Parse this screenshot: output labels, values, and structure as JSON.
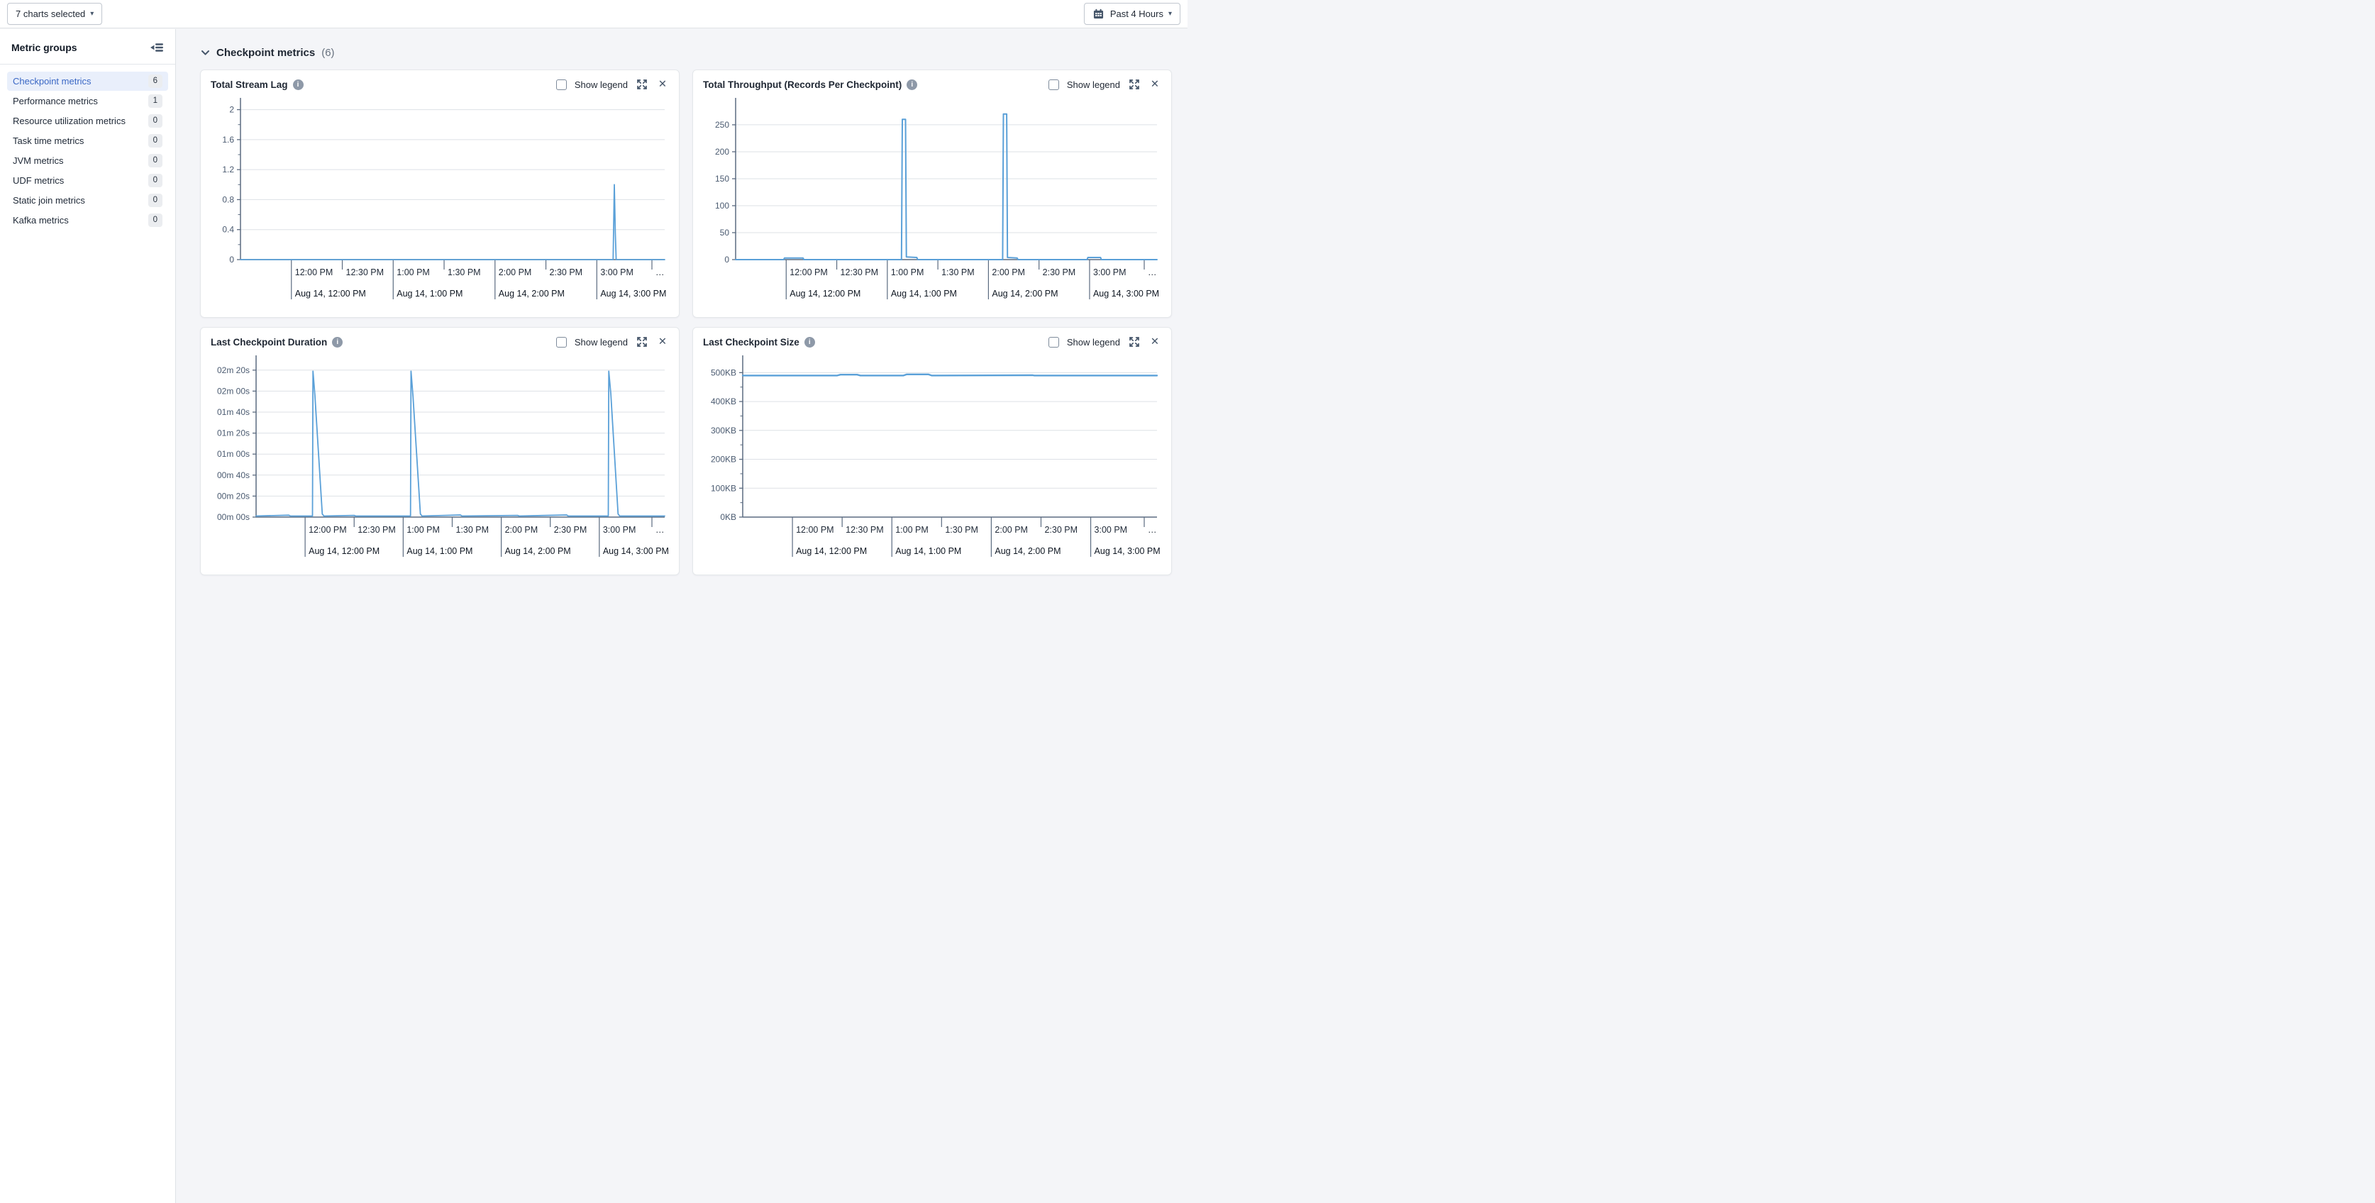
{
  "toolbar": {
    "charts_selected_label": "7 charts selected",
    "time_range_label": "Past 4 Hours"
  },
  "icons": {
    "caret_glyph": "▾",
    "close_glyph": "✕"
  },
  "labels": {
    "show_legend": "Show legend"
  },
  "sidebar": {
    "title": "Metric groups",
    "items": [
      {
        "label": "Checkpoint metrics",
        "count": "6",
        "selected": true
      },
      {
        "label": "Performance metrics",
        "count": "1",
        "selected": false
      },
      {
        "label": "Resource utilization metrics",
        "count": "0",
        "selected": false
      },
      {
        "label": "Task time metrics",
        "count": "0",
        "selected": false
      },
      {
        "label": "JVM metrics",
        "count": "0",
        "selected": false
      },
      {
        "label": "UDF metrics",
        "count": "0",
        "selected": false
      },
      {
        "label": "Static join metrics",
        "count": "0",
        "selected": false
      },
      {
        "label": "Kafka metrics",
        "count": "0",
        "selected": false
      }
    ]
  },
  "section": {
    "title": "Checkpoint metrics",
    "count": "(6)"
  },
  "colors": {
    "line_blue": "#5aa0d8",
    "accent_blue": "#3b68c5",
    "gridline": "#dde1e6",
    "axis": "#5b6b80"
  },
  "chart_data": [
    {
      "type": "line",
      "title": "Total Stream Lag",
      "legend_shown": false,
      "xlim": [
        0,
        250
      ],
      "x_start_time": "11:30 AM",
      "ylim": [
        0,
        2.1
      ],
      "yticks": [
        {
          "v": 0,
          "label": "0"
        },
        {
          "v": 0.4,
          "label": "0.4"
        },
        {
          "v": 0.8,
          "label": "0.8"
        },
        {
          "v": 1.2,
          "label": "1.2"
        },
        {
          "v": 1.6,
          "label": "1.6"
        },
        {
          "v": 2,
          "label": "2"
        }
      ],
      "minor_y_step": 0.2,
      "x_time_ticks": [
        {
          "t": 30,
          "label": "12:00 PM"
        },
        {
          "t": 60,
          "label": "12:30 PM"
        },
        {
          "t": 90,
          "label": "1:00 PM"
        },
        {
          "t": 120,
          "label": "1:30 PM"
        },
        {
          "t": 150,
          "label": "2:00 PM"
        },
        {
          "t": 180,
          "label": "2:30 PM"
        },
        {
          "t": 210,
          "label": "3:00 PM"
        }
      ],
      "x_date_ticks": [
        {
          "t": 30,
          "label": "Aug 14, 12:00 PM"
        },
        {
          "t": 90,
          "label": "Aug 14, 1:00 PM"
        },
        {
          "t": 150,
          "label": "Aug 14, 2:00 PM"
        },
        {
          "t": 210,
          "label": "Aug 14, 3:00 PM"
        }
      ],
      "x_overflow_label": "…",
      "layout": {
        "margin_left": 42
      },
      "series": [
        {
          "name": "total stream lag",
          "color": "#5aa0d8",
          "stroke_width": 1.8,
          "points": [
            [
              0,
              0
            ],
            [
              219.6,
              0
            ],
            [
              220.3,
              1.0
            ],
            [
              220.9,
              0.35
            ],
            [
              221.4,
              0
            ],
            [
              250,
              0
            ]
          ]
        }
      ]
    },
    {
      "type": "line",
      "title": "Total Throughput (Records Per Checkpoint)",
      "legend_shown": false,
      "xlim": [
        0,
        250
      ],
      "x_start_time": "11:30 AM",
      "ylim": [
        0,
        292
      ],
      "yticks": [
        {
          "v": 0,
          "label": "0"
        },
        {
          "v": 50,
          "label": "50"
        },
        {
          "v": 100,
          "label": "100"
        },
        {
          "v": 150,
          "label": "150"
        },
        {
          "v": 200,
          "label": "200"
        },
        {
          "v": 250,
          "label": "250"
        }
      ],
      "minor_y_step": 0,
      "x_time_ticks": [
        {
          "t": 30,
          "label": "12:00 PM"
        },
        {
          "t": 60,
          "label": "12:30 PM"
        },
        {
          "t": 90,
          "label": "1:00 PM"
        },
        {
          "t": 120,
          "label": "1:30 PM"
        },
        {
          "t": 150,
          "label": "2:00 PM"
        },
        {
          "t": 180,
          "label": "2:30 PM"
        },
        {
          "t": 210,
          "label": "3:00 PM"
        }
      ],
      "x_date_ticks": [
        {
          "t": 30,
          "label": "Aug 14, 12:00 PM"
        },
        {
          "t": 90,
          "label": "Aug 14, 1:00 PM"
        },
        {
          "t": 150,
          "label": "Aug 14, 2:00 PM"
        },
        {
          "t": 210,
          "label": "Aug 14, 3:00 PM"
        }
      ],
      "x_overflow_label": "…",
      "layout": {
        "margin_left": 46
      },
      "series": [
        {
          "name": "records per checkpoint",
          "color": "#5aa0d8",
          "stroke_width": 2,
          "points": [
            [
              0,
              0
            ],
            [
              28.5,
              0
            ],
            [
              29,
              3
            ],
            [
              40,
              3
            ],
            [
              40.5,
              0
            ],
            [
              98.4,
              0
            ],
            [
              98.9,
              260
            ],
            [
              100.8,
              260
            ],
            [
              101.3,
              5
            ],
            [
              107.5,
              4
            ],
            [
              108,
              0
            ],
            [
              158.4,
              0
            ],
            [
              158.9,
              270
            ],
            [
              160.8,
              270
            ],
            [
              161.3,
              4
            ],
            [
              167,
              3
            ],
            [
              167.5,
              0
            ],
            [
              208.5,
              0
            ],
            [
              209,
              4
            ],
            [
              216.5,
              4
            ],
            [
              217,
              0
            ],
            [
              250,
              0
            ]
          ]
        }
      ]
    },
    {
      "type": "line",
      "title": "Last Checkpoint Duration",
      "legend_shown": false,
      "xlim": [
        0,
        250
      ],
      "x_start_time": "11:30 AM",
      "unit": "minutes:seconds",
      "ylim": [
        0,
        150
      ],
      "yticks": [
        {
          "v": 0,
          "label": "00m 00s"
        },
        {
          "v": 20,
          "label": "00m 20s"
        },
        {
          "v": 40,
          "label": "00m 40s"
        },
        {
          "v": 60,
          "label": "01m 00s"
        },
        {
          "v": 80,
          "label": "01m 20s"
        },
        {
          "v": 100,
          "label": "01m 40s"
        },
        {
          "v": 120,
          "label": "02m 00s"
        },
        {
          "v": 140,
          "label": "02m 20s"
        }
      ],
      "minor_y_step": 0,
      "x_time_ticks": [
        {
          "t": 30,
          "label": "12:00 PM"
        },
        {
          "t": 60,
          "label": "12:30 PM"
        },
        {
          "t": 90,
          "label": "1:00 PM"
        },
        {
          "t": 120,
          "label": "1:30 PM"
        },
        {
          "t": 150,
          "label": "2:00 PM"
        },
        {
          "t": 180,
          "label": "2:30 PM"
        },
        {
          "t": 210,
          "label": "3:00 PM"
        }
      ],
      "x_date_ticks": [
        {
          "t": 30,
          "label": "Aug 14, 12:00 PM"
        },
        {
          "t": 90,
          "label": "Aug 14, 1:00 PM"
        },
        {
          "t": 150,
          "label": "Aug 14, 2:00 PM"
        },
        {
          "t": 210,
          "label": "Aug 14, 3:00 PM"
        }
      ],
      "x_overflow_label": "…",
      "layout": {
        "margin_left": 64
      },
      "series": [
        {
          "name": "last checkpoint duration",
          "color": "#5aa0d8",
          "stroke_width": 1.8,
          "points": [
            [
              0,
              1
            ],
            [
              20,
              1.8
            ],
            [
              21,
              1
            ],
            [
              34.5,
              1
            ],
            [
              34.8,
              139
            ],
            [
              36,
              116
            ],
            [
              40.5,
              3
            ],
            [
              41.5,
              1
            ],
            [
              60,
              1.6
            ],
            [
              61,
              1
            ],
            [
              94.5,
              1
            ],
            [
              94.8,
              139
            ],
            [
              96,
              115
            ],
            [
              100.5,
              3
            ],
            [
              101.5,
              1
            ],
            [
              125,
              2
            ],
            [
              126,
              1
            ],
            [
              160,
              1.6
            ],
            [
              161,
              1
            ],
            [
              190,
              2
            ],
            [
              191,
              1
            ],
            [
              215.5,
              1
            ],
            [
              215.8,
              139
            ],
            [
              217,
              118
            ],
            [
              221.5,
              3
            ],
            [
              222.5,
              1
            ],
            [
              250,
              1
            ]
          ]
        }
      ]
    },
    {
      "type": "line",
      "title": "Last Checkpoint Size",
      "legend_shown": false,
      "xlim": [
        0,
        250
      ],
      "x_start_time": "11:30 AM",
      "unit": "KB",
      "ylim": [
        0,
        545
      ],
      "yticks": [
        {
          "v": 0,
          "label": "0KB"
        },
        {
          "v": 100,
          "label": "100KB"
        },
        {
          "v": 200,
          "label": "200KB"
        },
        {
          "v": 300,
          "label": "300KB"
        },
        {
          "v": 400,
          "label": "400KB"
        },
        {
          "v": 500,
          "label": "500KB"
        }
      ],
      "minor_y_step": 50,
      "x_time_ticks": [
        {
          "t": 30,
          "label": "12:00 PM"
        },
        {
          "t": 60,
          "label": "12:30 PM"
        },
        {
          "t": 90,
          "label": "1:00 PM"
        },
        {
          "t": 120,
          "label": "1:30 PM"
        },
        {
          "t": 150,
          "label": "2:00 PM"
        },
        {
          "t": 180,
          "label": "2:30 PM"
        },
        {
          "t": 210,
          "label": "3:00 PM"
        }
      ],
      "x_date_ticks": [
        {
          "t": 30,
          "label": "Aug 14, 12:00 PM"
        },
        {
          "t": 90,
          "label": "Aug 14, 1:00 PM"
        },
        {
          "t": 150,
          "label": "Aug 14, 2:00 PM"
        },
        {
          "t": 210,
          "label": "Aug 14, 3:00 PM"
        }
      ],
      "x_overflow_label": "…",
      "layout": {
        "margin_left": 56
      },
      "series": [
        {
          "name": "last checkpoint size",
          "color": "#5aa0d8",
          "stroke_width": 2.4,
          "points": [
            [
              0,
              490
            ],
            [
              57,
              490
            ],
            [
              59,
              493
            ],
            [
              69,
              493
            ],
            [
              71,
              490
            ],
            [
              97,
              490
            ],
            [
              99,
              494
            ],
            [
              112,
              494
            ],
            [
              114,
              490
            ],
            [
              175,
              491
            ],
            [
              176,
              490
            ],
            [
              250,
              490
            ]
          ]
        }
      ]
    }
  ]
}
